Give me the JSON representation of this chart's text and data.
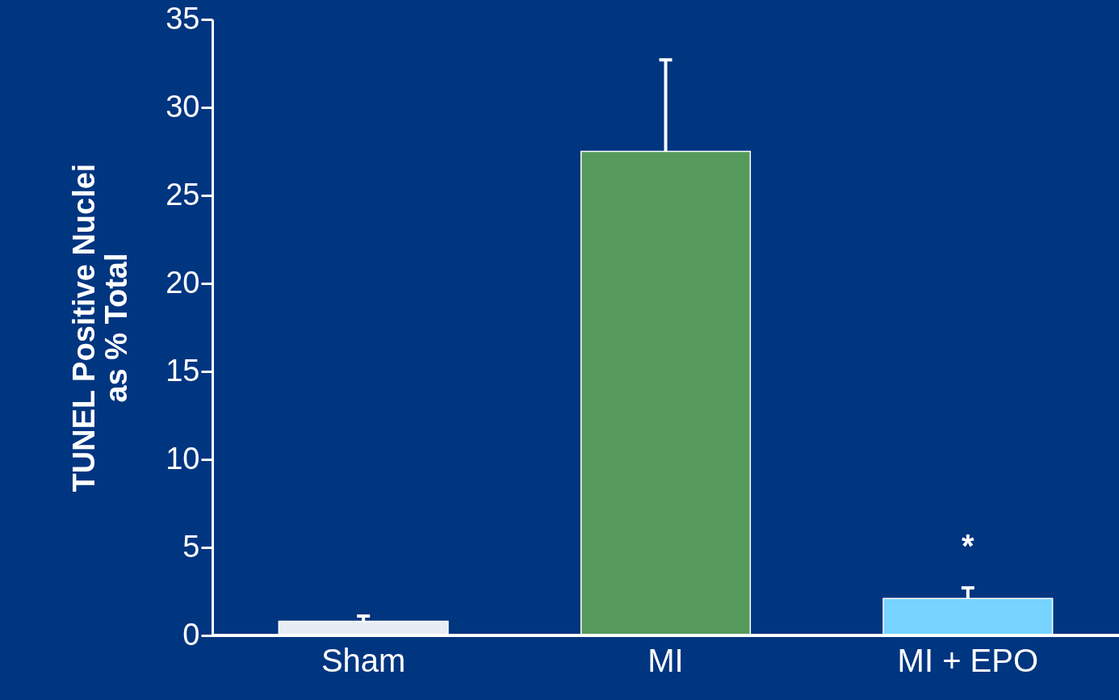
{
  "chart_data": {
    "type": "bar",
    "ylabel": "TUNEL Positive Nuclei\nas % Total",
    "categories": [
      "Sham",
      "MI",
      "MI + EPO"
    ],
    "values": [
      0.8,
      27.5,
      2.1
    ],
    "errors": [
      0.3,
      5.2,
      0.6
    ],
    "colors": [
      "#e8ecf5",
      "#559a5c",
      "#77d3ff"
    ],
    "ylim": [
      0,
      35
    ],
    "yticks": [
      0,
      5,
      10,
      15,
      20,
      25,
      30,
      35
    ],
    "grid": false,
    "annotations": [
      "*"
    ]
  }
}
